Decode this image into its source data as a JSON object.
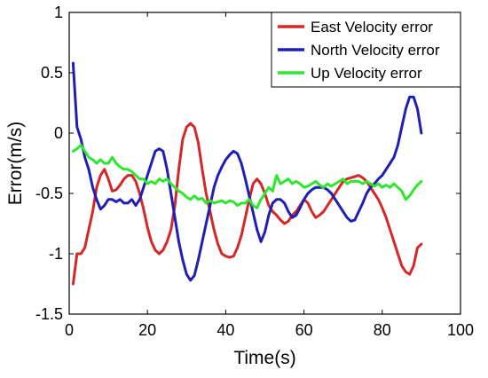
{
  "chart_data": {
    "type": "line",
    "xlabel": "Time(s)",
    "ylabel": "Error(m/s)",
    "xlim": [
      0,
      100
    ],
    "ylim": [
      -1.5,
      1
    ],
    "xticks": [
      0,
      20,
      40,
      60,
      80,
      100
    ],
    "yticks": [
      -1.5,
      -1,
      -0.5,
      0,
      0.5,
      1
    ],
    "xtick_labels": [
      "0",
      "20",
      "40",
      "60",
      "80",
      "100"
    ],
    "ytick_labels": [
      "-1.5",
      "-1",
      "-0.5",
      "0",
      "0.5",
      "1"
    ],
    "grid": false,
    "legend_position": "top-right",
    "series": [
      {
        "name": "East Velocity error",
        "color": "#d62728",
        "x": [
          1,
          2,
          3,
          4,
          5,
          6,
          7,
          8,
          9,
          10,
          11,
          12,
          13,
          14,
          15,
          16,
          17,
          18,
          19,
          20,
          21,
          22,
          23,
          24,
          25,
          26,
          27,
          28,
          29,
          30,
          31,
          32,
          33,
          34,
          35,
          36,
          37,
          38,
          39,
          40,
          41,
          42,
          43,
          44,
          45,
          46,
          47,
          48,
          49,
          50,
          51,
          52,
          53,
          54,
          55,
          56,
          57,
          58,
          59,
          60,
          61,
          62,
          63,
          64,
          65,
          66,
          67,
          68,
          69,
          70,
          71,
          72,
          73,
          74,
          75,
          76,
          77,
          78,
          79,
          80,
          81,
          82,
          83,
          84,
          85,
          86,
          87,
          88,
          89,
          90
        ],
        "y": [
          -1.25,
          -1.0,
          -1.0,
          -0.95,
          -0.8,
          -0.65,
          -0.45,
          -0.35,
          -0.3,
          -0.38,
          -0.48,
          -0.47,
          -0.43,
          -0.38,
          -0.35,
          -0.35,
          -0.4,
          -0.5,
          -0.63,
          -0.78,
          -0.9,
          -0.97,
          -1.0,
          -0.97,
          -0.9,
          -0.8,
          -0.6,
          -0.3,
          -0.05,
          0.05,
          0.08,
          0.05,
          -0.08,
          -0.3,
          -0.5,
          -0.65,
          -0.8,
          -0.92,
          -1.0,
          -1.02,
          -1.03,
          -1.02,
          -0.95,
          -0.85,
          -0.7,
          -0.55,
          -0.42,
          -0.38,
          -0.42,
          -0.5,
          -0.6,
          -0.65,
          -0.68,
          -0.72,
          -0.75,
          -0.73,
          -0.68,
          -0.65,
          -0.6,
          -0.55,
          -0.58,
          -0.65,
          -0.7,
          -0.68,
          -0.65,
          -0.6,
          -0.55,
          -0.5,
          -0.45,
          -0.4,
          -0.38,
          -0.37,
          -0.36,
          -0.35,
          -0.37,
          -0.4,
          -0.45,
          -0.5,
          -0.55,
          -0.62,
          -0.7,
          -0.8,
          -0.9,
          -1.0,
          -1.1,
          -1.15,
          -1.17,
          -1.1,
          -0.95,
          -0.92
        ]
      },
      {
        "name": "North Velocity error",
        "color": "#1f1fb4",
        "x": [
          1,
          2,
          3,
          4,
          5,
          6,
          7,
          8,
          9,
          10,
          11,
          12,
          13,
          14,
          15,
          16,
          17,
          18,
          19,
          20,
          21,
          22,
          23,
          24,
          25,
          26,
          27,
          28,
          29,
          30,
          31,
          32,
          33,
          34,
          35,
          36,
          37,
          38,
          39,
          40,
          41,
          42,
          43,
          44,
          45,
          46,
          47,
          48,
          49,
          50,
          51,
          52,
          53,
          54,
          55,
          56,
          57,
          58,
          59,
          60,
          61,
          62,
          63,
          64,
          65,
          66,
          67,
          68,
          69,
          70,
          71,
          72,
          73,
          74,
          75,
          76,
          77,
          78,
          79,
          80,
          81,
          82,
          83,
          84,
          85,
          86,
          87,
          88,
          89,
          90
        ],
        "y": [
          0.58,
          0.05,
          -0.05,
          -0.2,
          -0.3,
          -0.45,
          -0.55,
          -0.63,
          -0.6,
          -0.55,
          -0.55,
          -0.57,
          -0.55,
          -0.58,
          -0.58,
          -0.55,
          -0.6,
          -0.55,
          -0.45,
          -0.35,
          -0.25,
          -0.15,
          -0.13,
          -0.15,
          -0.3,
          -0.5,
          -0.7,
          -0.9,
          -1.05,
          -1.17,
          -1.22,
          -1.18,
          -1.05,
          -0.9,
          -0.75,
          -0.6,
          -0.45,
          -0.35,
          -0.28,
          -0.22,
          -0.18,
          -0.15,
          -0.17,
          -0.25,
          -0.38,
          -0.52,
          -0.66,
          -0.8,
          -0.9,
          -0.82,
          -0.68,
          -0.58,
          -0.55,
          -0.55,
          -0.58,
          -0.65,
          -0.7,
          -0.68,
          -0.62,
          -0.55,
          -0.5,
          -0.47,
          -0.45,
          -0.45,
          -0.45,
          -0.47,
          -0.5,
          -0.55,
          -0.6,
          -0.65,
          -0.7,
          -0.73,
          -0.72,
          -0.65,
          -0.58,
          -0.5,
          -0.45,
          -0.42,
          -0.38,
          -0.35,
          -0.3,
          -0.25,
          -0.2,
          -0.1,
          0.05,
          0.2,
          0.3,
          0.3,
          0.2,
          0.0
        ]
      },
      {
        "name": "Up Velocity error",
        "color": "#2ee62e",
        "x": [
          1,
          2,
          3,
          4,
          5,
          6,
          7,
          8,
          9,
          10,
          11,
          12,
          13,
          14,
          15,
          16,
          17,
          18,
          19,
          20,
          21,
          22,
          23,
          24,
          25,
          26,
          27,
          28,
          29,
          30,
          31,
          32,
          33,
          34,
          35,
          36,
          37,
          38,
          39,
          40,
          41,
          42,
          43,
          44,
          45,
          46,
          47,
          48,
          49,
          50,
          51,
          52,
          53,
          54,
          55,
          56,
          57,
          58,
          59,
          60,
          61,
          62,
          63,
          64,
          65,
          66,
          67,
          68,
          69,
          70,
          71,
          72,
          73,
          74,
          75,
          76,
          77,
          78,
          79,
          80,
          81,
          82,
          83,
          84,
          85,
          86,
          87,
          88,
          89,
          90
        ],
        "y": [
          -0.15,
          -0.13,
          -0.1,
          -0.15,
          -0.2,
          -0.22,
          -0.25,
          -0.22,
          -0.25,
          -0.25,
          -0.2,
          -0.25,
          -0.28,
          -0.3,
          -0.3,
          -0.32,
          -0.35,
          -0.38,
          -0.38,
          -0.42,
          -0.4,
          -0.42,
          -0.38,
          -0.4,
          -0.38,
          -0.42,
          -0.45,
          -0.48,
          -0.5,
          -0.53,
          -0.55,
          -0.52,
          -0.55,
          -0.54,
          -0.58,
          -0.56,
          -0.58,
          -0.57,
          -0.56,
          -0.58,
          -0.56,
          -0.57,
          -0.6,
          -0.58,
          -0.58,
          -0.55,
          -0.6,
          -0.62,
          -0.55,
          -0.5,
          -0.45,
          -0.48,
          -0.35,
          -0.42,
          -0.4,
          -0.38,
          -0.42,
          -0.4,
          -0.42,
          -0.45,
          -0.44,
          -0.42,
          -0.4,
          -0.43,
          -0.45,
          -0.42,
          -0.44,
          -0.42,
          -0.4,
          -0.38,
          -0.42,
          -0.4,
          -0.4,
          -0.4,
          -0.42,
          -0.4,
          -0.42,
          -0.44,
          -0.42,
          -0.45,
          -0.43,
          -0.45,
          -0.42,
          -0.45,
          -0.48,
          -0.55,
          -0.52,
          -0.47,
          -0.43,
          -0.4
        ]
      }
    ]
  }
}
